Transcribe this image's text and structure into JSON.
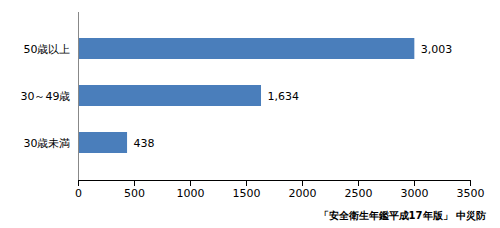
{
  "chart_data": {
    "type": "bar",
    "orientation": "horizontal",
    "caption": "「安全衛生年鑑平成17年版」 中災防",
    "categories": [
      "50歳以上",
      "30～49歳",
      "30歳未満"
    ],
    "values": [
      3003,
      1634,
      438
    ],
    "value_labels": [
      "3,003",
      "1,634",
      "438"
    ],
    "data_labels": true,
    "color": "#4a7ebb",
    "xlim": [
      0,
      3500
    ],
    "xticks": [
      0,
      500,
      1000,
      1500,
      2000,
      2500,
      3000,
      3500
    ],
    "grid": false
  }
}
